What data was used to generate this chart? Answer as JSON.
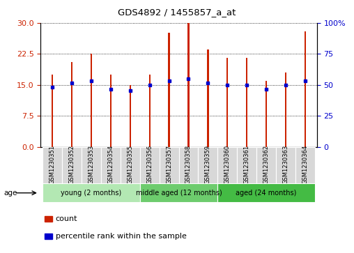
{
  "title": "GDS4892 / 1455857_a_at",
  "samples": [
    "GSM1230351",
    "GSM1230352",
    "GSM1230353",
    "GSM1230354",
    "GSM1230355",
    "GSM1230356",
    "GSM1230357",
    "GSM1230358",
    "GSM1230359",
    "GSM1230360",
    "GSM1230361",
    "GSM1230362",
    "GSM1230363",
    "GSM1230364"
  ],
  "bar_heights": [
    17.5,
    20.5,
    22.5,
    17.5,
    15.0,
    17.5,
    27.5,
    30.0,
    23.5,
    21.5,
    21.5,
    16.0,
    18.0,
    28.0
  ],
  "percentile_values": [
    14.5,
    15.5,
    16.0,
    14.0,
    13.5,
    15.0,
    16.0,
    16.5,
    15.5,
    15.0,
    15.0,
    14.0,
    15.0,
    16.0
  ],
  "groups": [
    {
      "label": "young (2 months)",
      "start": 0,
      "end": 5,
      "color": "#b3e8b3"
    },
    {
      "label": "middle aged (12 months)",
      "start": 5,
      "end": 9,
      "color": "#6dcc6d"
    },
    {
      "label": "aged (24 months)",
      "start": 9,
      "end": 14,
      "color": "#44bb44"
    }
  ],
  "ylim_left": [
    0,
    30
  ],
  "ylim_right": [
    0,
    100
  ],
  "yticks_left": [
    0,
    7.5,
    15,
    22.5,
    30
  ],
  "yticks_right": [
    0,
    25,
    50,
    75,
    100
  ],
  "bar_color": "#CC2200",
  "marker_color": "#0000CC",
  "tick_label_color_left": "#CC2200",
  "tick_label_color_right": "#0000CC",
  "bar_width": 0.08,
  "legend_count_label": "count",
  "legend_pct_label": "percentile rank within the sample",
  "age_label": "age"
}
